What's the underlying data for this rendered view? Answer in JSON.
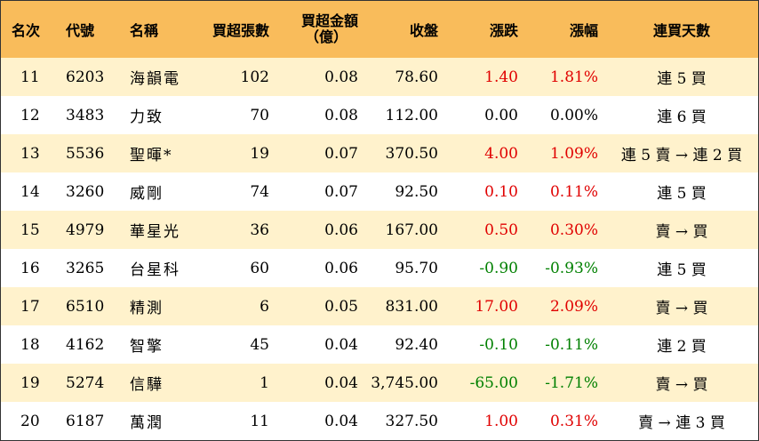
{
  "headers": {
    "rank": "名次",
    "code": "代號",
    "name": "名稱",
    "net_lots": "買超張數",
    "net_amount_line1": "買超金額",
    "net_amount_line2": "（億）",
    "close": "收盤",
    "change": "漲跌",
    "change_pct": "漲幅",
    "streak": "連買天數"
  },
  "rows": [
    {
      "rank": "11",
      "code": "6203",
      "name": "海韻電",
      "lots": "102",
      "amount": "0.08",
      "close": "78.60",
      "change": "1.40",
      "pct": "1.81%",
      "streak": "連 5 買",
      "dir": "pos"
    },
    {
      "rank": "12",
      "code": "3483",
      "name": "力致",
      "lots": "70",
      "amount": "0.08",
      "close": "112.00",
      "change": "0.00",
      "pct": "0.00%",
      "streak": "連 6 買",
      "dir": "zero"
    },
    {
      "rank": "13",
      "code": "5536",
      "name": "聖暉*",
      "lots": "19",
      "amount": "0.07",
      "close": "370.50",
      "change": "4.00",
      "pct": "1.09%",
      "streak": "連 5 賣 → 連 2 買",
      "dir": "pos"
    },
    {
      "rank": "14",
      "code": "3260",
      "name": "威剛",
      "lots": "74",
      "amount": "0.07",
      "close": "92.50",
      "change": "0.10",
      "pct": "0.11%",
      "streak": "連 5 買",
      "dir": "pos"
    },
    {
      "rank": "15",
      "code": "4979",
      "name": "華星光",
      "lots": "36",
      "amount": "0.06",
      "close": "167.00",
      "change": "0.50",
      "pct": "0.30%",
      "streak": "賣 → 買",
      "dir": "pos"
    },
    {
      "rank": "16",
      "code": "3265",
      "name": "台星科",
      "lots": "60",
      "amount": "0.06",
      "close": "95.70",
      "change": "-0.90",
      "pct": "-0.93%",
      "streak": "連 5 買",
      "dir": "neg"
    },
    {
      "rank": "17",
      "code": "6510",
      "name": "精測",
      "lots": "6",
      "amount": "0.05",
      "close": "831.00",
      "change": "17.00",
      "pct": "2.09%",
      "streak": "賣 → 買",
      "dir": "pos"
    },
    {
      "rank": "18",
      "code": "4162",
      "name": "智擎",
      "lots": "45",
      "amount": "0.04",
      "close": "92.40",
      "change": "-0.10",
      "pct": "-0.11%",
      "streak": "連 2 買",
      "dir": "neg"
    },
    {
      "rank": "19",
      "code": "5274",
      "name": "信驊",
      "lots": "1",
      "amount": "0.04",
      "close": "3,745.00",
      "change": "-65.00",
      "pct": "-1.71%",
      "streak": "賣 → 買",
      "dir": "neg"
    },
    {
      "rank": "20",
      "code": "6187",
      "name": "萬潤",
      "lots": "11",
      "amount": "0.04",
      "close": "327.50",
      "change": "1.00",
      "pct": "0.31%",
      "streak": "賣 → 連 3 買",
      "dir": "pos"
    }
  ],
  "colors": {
    "header_bg": "#f9bc5b",
    "stripe_bg": "#fff2cc",
    "up": "#e00000",
    "down": "#008000"
  }
}
